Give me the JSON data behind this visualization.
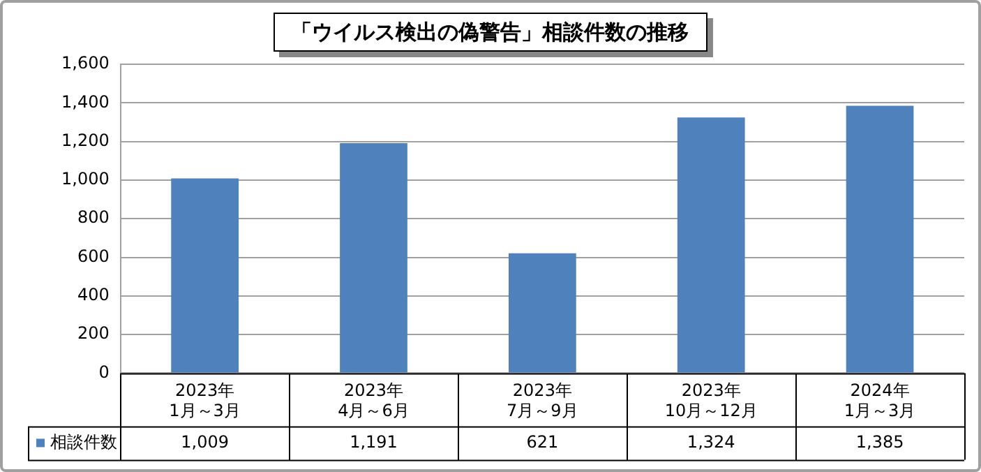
{
  "chart_data": {
    "type": "bar",
    "title": "「ウイルス検出の偽警告」相談件数の推移",
    "categories": [
      "2023年\n1月～3月",
      "2023年\n4月～6月",
      "2023年\n7月～9月",
      "2023年\n10月～12月",
      "2024年\n1月～3月"
    ],
    "series": [
      {
        "name": "相談件数",
        "color": "#4f81bd",
        "values": [
          1009,
          1191,
          621,
          1324,
          1385
        ],
        "value_labels": [
          "1,009",
          "1,191",
          "621",
          "1,324",
          "1,385"
        ]
      }
    ],
    "ylim": [
      0,
      1600
    ],
    "yticks": [
      0,
      200,
      400,
      600,
      800,
      {
        "value": 1000,
        "label": "1,000"
      },
      {
        "value": 1200,
        "label": "1,200"
      },
      {
        "value": 1400,
        "label": "1,400"
      },
      {
        "value": 1600,
        "label": "1,600"
      }
    ],
    "grid": "y",
    "legend": "bottom"
  }
}
